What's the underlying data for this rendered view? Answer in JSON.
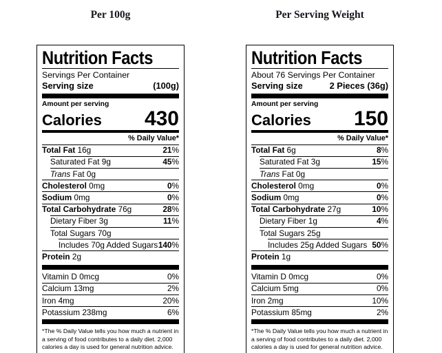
{
  "colors": {
    "background": "#ffffff",
    "text": "#000000",
    "column_header_text": "#17171f",
    "label_border": "#000000",
    "divider_bar": "#000000"
  },
  "labels": [
    {
      "column_header": "Per 100g",
      "title": "Nutrition Facts",
      "servings_per_container": "Servings Per Container",
      "serving_size_label": "Serving size",
      "serving_size_value": "(100g)",
      "amount_per_serving": "Amount per serving",
      "calories_label": "Calories",
      "calories_value": "430",
      "daily_value_header": "% Daily Value*",
      "nutrient_rows": [
        {
          "lead": "Total Fat",
          "lead_style": "bold",
          "rest": " 16g",
          "dv": "21%",
          "dv_bold": true,
          "indent": 0
        },
        {
          "lead": "",
          "lead_style": "none",
          "rest": "Saturated Fat 9g",
          "dv": "45%",
          "dv_bold": true,
          "indent": 1
        },
        {
          "lead": "Trans",
          "lead_style": "italic",
          "rest": " Fat 0g",
          "dv": "",
          "dv_bold": false,
          "indent": 1
        },
        {
          "lead": "Cholesterol",
          "lead_style": "bold",
          "rest": " 0mg",
          "dv": "0%",
          "dv_bold": true,
          "indent": 0
        },
        {
          "lead": "Sodium",
          "lead_style": "bold",
          "rest": " 0mg",
          "dv": "0%",
          "dv_bold": true,
          "indent": 0
        },
        {
          "lead": "Total Carbohydrate",
          "lead_style": "bold",
          "rest": " 76g",
          "dv": "28%",
          "dv_bold": true,
          "indent": 0
        },
        {
          "lead": "",
          "lead_style": "none",
          "rest": "Dietary Fiber 3g",
          "dv": "11%",
          "dv_bold": true,
          "indent": 1
        },
        {
          "lead": "",
          "lead_style": "none",
          "rest": "Total Sugars 70g",
          "dv": "",
          "dv_bold": false,
          "indent": 1
        },
        {
          "lead": "",
          "lead_style": "none",
          "rest": "Includes 70g Added Sugars",
          "dv": "140%",
          "dv_bold": true,
          "indent": 2
        },
        {
          "lead": "Protein",
          "lead_style": "bold",
          "rest": " 2g",
          "dv": "",
          "dv_bold": false,
          "indent": 0
        }
      ],
      "vitamin_rows": [
        {
          "lead": "",
          "lead_style": "none",
          "rest": "Vitamin D 0mcg",
          "dv": "0%",
          "dv_bold": false,
          "indent": 0
        },
        {
          "lead": "",
          "lead_style": "none",
          "rest": "Calcium 13mg",
          "dv": "2%",
          "dv_bold": false,
          "indent": 0
        },
        {
          "lead": "",
          "lead_style": "none",
          "rest": "Iron 4mg",
          "dv": "20%",
          "dv_bold": false,
          "indent": 0
        },
        {
          "lead": "",
          "lead_style": "none",
          "rest": "Potassium 238mg",
          "dv": "6%",
          "dv_bold": false,
          "indent": 0
        }
      ],
      "footnote": "*The % Daily Value tells you how much a nutrient in a serving of food contributes to a daily diet. 2,000 calories a day is used for general nutrition advice."
    },
    {
      "column_header": "Per Serving Weight",
      "title": "Nutrition Facts",
      "servings_per_container": "About 76 Servings Per Container",
      "serving_size_label": "Serving size",
      "serving_size_value": "2 Pieces (36g)",
      "amount_per_serving": "Amount per serving",
      "calories_label": "Calories",
      "calories_value": "150",
      "daily_value_header": "% Daily Value*",
      "nutrient_rows": [
        {
          "lead": "Total Fat",
          "lead_style": "bold",
          "rest": " 6g",
          "dv": "8%",
          "dv_bold": true,
          "indent": 0
        },
        {
          "lead": "",
          "lead_style": "none",
          "rest": "Saturated Fat 3g",
          "dv": "15%",
          "dv_bold": true,
          "indent": 1
        },
        {
          "lead": "Trans",
          "lead_style": "italic",
          "rest": " Fat 0g",
          "dv": "",
          "dv_bold": false,
          "indent": 1
        },
        {
          "lead": "Cholesterol",
          "lead_style": "bold",
          "rest": " 0mg",
          "dv": "0%",
          "dv_bold": true,
          "indent": 0
        },
        {
          "lead": "Sodium",
          "lead_style": "bold",
          "rest": " 0mg",
          "dv": "0%",
          "dv_bold": true,
          "indent": 0
        },
        {
          "lead": "Total Carbohydrate",
          "lead_style": "bold",
          "rest": " 27g",
          "dv": "10%",
          "dv_bold": true,
          "indent": 0
        },
        {
          "lead": "",
          "lead_style": "none",
          "rest": "Dietary Fiber 1g",
          "dv": "4%",
          "dv_bold": true,
          "indent": 1
        },
        {
          "lead": "",
          "lead_style": "none",
          "rest": "Total Sugars 25g",
          "dv": "",
          "dv_bold": false,
          "indent": 1
        },
        {
          "lead": "",
          "lead_style": "none",
          "rest": "Includes 25g Added Sugars",
          "dv": "50%",
          "dv_bold": true,
          "indent": 2
        },
        {
          "lead": "Protein",
          "lead_style": "bold",
          "rest": " 1g",
          "dv": "",
          "dv_bold": false,
          "indent": 0
        }
      ],
      "vitamin_rows": [
        {
          "lead": "",
          "lead_style": "none",
          "rest": "Vitamin D 0mcg",
          "dv": "0%",
          "dv_bold": false,
          "indent": 0
        },
        {
          "lead": "",
          "lead_style": "none",
          "rest": "Calcium 5mg",
          "dv": "0%",
          "dv_bold": false,
          "indent": 0
        },
        {
          "lead": "",
          "lead_style": "none",
          "rest": "Iron 2mg",
          "dv": "10%",
          "dv_bold": false,
          "indent": 0
        },
        {
          "lead": "",
          "lead_style": "none",
          "rest": "Potassium 85mg",
          "dv": "2%",
          "dv_bold": false,
          "indent": 0
        }
      ],
      "footnote": "*The % Daily Value tells you how much a nutrient in a serving of food contributes to a daily diet. 2,000 calories a day is used for general nutrition advice."
    }
  ]
}
